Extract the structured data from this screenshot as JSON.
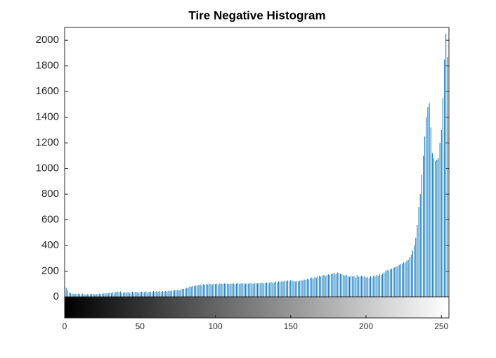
{
  "chart_data": {
    "type": "stem",
    "title": "Tire Negative Histogram",
    "color": "#0072bd",
    "x": [
      0,
      1,
      2,
      3,
      4,
      5,
      6,
      7,
      8,
      9,
      10,
      11,
      12,
      13,
      14,
      15,
      16,
      17,
      18,
      19,
      20,
      21,
      22,
      23,
      24,
      25,
      26,
      27,
      28,
      29,
      30,
      31,
      32,
      33,
      34,
      35,
      36,
      37,
      38,
      39,
      40,
      41,
      42,
      43,
      44,
      45,
      46,
      47,
      48,
      49,
      50,
      51,
      52,
      53,
      54,
      55,
      56,
      57,
      58,
      59,
      60,
      61,
      62,
      63,
      64,
      65,
      66,
      67,
      68,
      69,
      70,
      71,
      72,
      73,
      74,
      75,
      76,
      77,
      78,
      79,
      80,
      81,
      82,
      83,
      84,
      85,
      86,
      87,
      88,
      89,
      90,
      91,
      92,
      93,
      94,
      95,
      96,
      97,
      98,
      99,
      100,
      101,
      102,
      103,
      104,
      105,
      106,
      107,
      108,
      109,
      110,
      111,
      112,
      113,
      114,
      115,
      116,
      117,
      118,
      119,
      120,
      121,
      122,
      123,
      124,
      125,
      126,
      127,
      128,
      129,
      130,
      131,
      132,
      133,
      134,
      135,
      136,
      137,
      138,
      139,
      140,
      141,
      142,
      143,
      144,
      145,
      146,
      147,
      148,
      149,
      150,
      151,
      152,
      153,
      154,
      155,
      156,
      157,
      158,
      159,
      160,
      161,
      162,
      163,
      164,
      165,
      166,
      167,
      168,
      169,
      170,
      171,
      172,
      173,
      174,
      175,
      176,
      177,
      178,
      179,
      180,
      181,
      182,
      183,
      184,
      185,
      186,
      187,
      188,
      189,
      190,
      191,
      192,
      193,
      194,
      195,
      196,
      197,
      198,
      199,
      200,
      201,
      202,
      203,
      204,
      205,
      206,
      207,
      208,
      209,
      210,
      211,
      212,
      213,
      214,
      215,
      216,
      217,
      218,
      219,
      220,
      221,
      222,
      223,
      224,
      225,
      226,
      227,
      228,
      229,
      230,
      231,
      232,
      233,
      234,
      235,
      236,
      237,
      238,
      239,
      240,
      241,
      242,
      243,
      244,
      245,
      246,
      247,
      248,
      249,
      250,
      251,
      252,
      253,
      254,
      255
    ],
    "values": [
      290,
      70,
      50,
      35,
      28,
      25,
      22,
      24,
      20,
      26,
      22,
      18,
      25,
      20,
      15,
      22,
      18,
      20,
      24,
      22,
      18,
      22,
      20,
      25,
      22,
      24,
      26,
      28,
      25,
      30,
      32,
      28,
      35,
      30,
      38,
      40,
      35,
      42,
      30,
      33,
      36,
      32,
      38,
      30,
      35,
      40,
      34,
      38,
      36,
      32,
      35,
      40,
      38,
      36,
      42,
      30,
      38,
      40,
      36,
      44,
      38,
      42,
      40,
      45,
      38,
      44,
      40,
      46,
      42,
      48,
      45,
      50,
      48,
      52,
      50,
      55,
      52,
      58,
      60,
      62,
      65,
      70,
      72,
      80,
      78,
      85,
      82,
      90,
      88,
      92,
      95,
      90,
      98,
      92,
      100,
      96,
      102,
      98,
      95,
      100,
      98,
      102,
      96,
      104,
      100,
      98,
      105,
      100,
      102,
      98,
      104,
      100,
      106,
      98,
      102,
      108,
      100,
      104,
      106,
      102,
      100,
      106,
      102,
      108,
      104,
      100,
      106,
      110,
      104,
      108,
      106,
      110,
      104,
      108,
      112,
      106,
      110,
      115,
      108,
      112,
      118,
      112,
      120,
      116,
      122,
      118,
      125,
      120,
      128,
      124,
      130,
      126,
      122,
      118,
      124,
      120,
      126,
      130,
      128,
      135,
      132,
      140,
      136,
      145,
      150,
      142,
      155,
      148,
      160,
      165,
      158,
      165,
      170,
      162,
      168,
      175,
      170,
      178,
      182,
      185,
      178,
      190,
      185,
      180,
      175,
      170,
      165,
      172,
      160,
      155,
      165,
      158,
      162,
      150,
      168,
      155,
      160,
      165,
      158,
      162,
      150,
      155,
      148,
      160,
      152,
      165,
      158,
      170,
      162,
      175,
      170,
      180,
      190,
      200,
      210,
      205,
      215,
      220,
      225,
      230,
      235,
      240,
      250,
      255,
      260,
      270,
      265,
      280,
      290,
      310,
      330,
      360,
      400,
      460,
      560,
      700,
      800,
      950,
      1100,
      1250,
      1400,
      1480,
      1510,
      1320,
      1120,
      1080,
      1060,
      1070,
      1080,
      1200,
      1300,
      1550,
      1850,
      2050,
      1870,
      1850
    ],
    "xlim": [
      0,
      255
    ],
    "xticks": [
      0,
      50,
      100,
      150,
      200,
      250
    ],
    "ylim": [
      0,
      2100
    ],
    "yticks": [
      0,
      200,
      400,
      600,
      800,
      1000,
      1200,
      1400,
      1600,
      1800,
      2000
    ]
  }
}
